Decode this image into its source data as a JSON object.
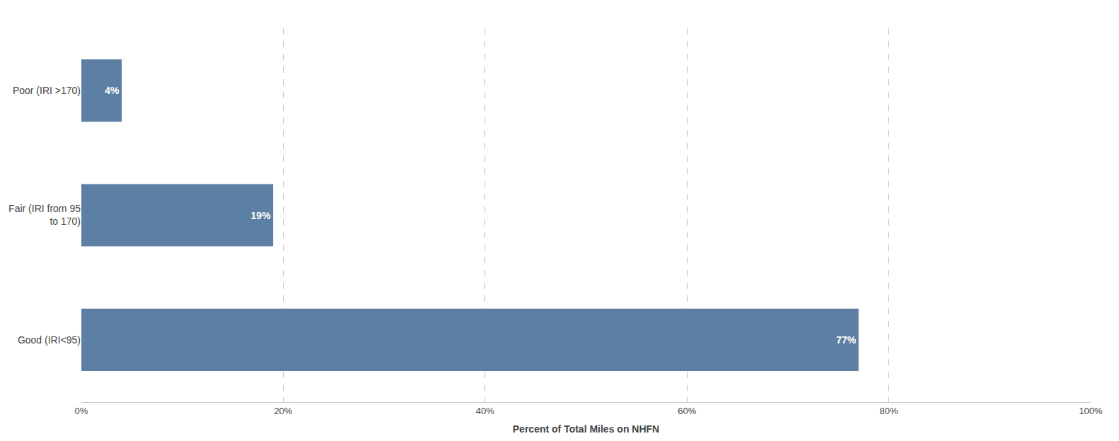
{
  "chart_data": {
    "type": "bar",
    "orientation": "horizontal",
    "categories": [
      "Good (IRI<95)",
      "Fair (IRI from 95\nto 170)",
      "Poor (IRI >170)"
    ],
    "values": [
      77,
      19,
      4
    ],
    "value_labels": [
      "77%",
      "19%",
      "4%"
    ],
    "data_labels": true,
    "color": "#5d7fa3",
    "xlabel": "Percent of Total Miles on NHFN",
    "xlim": [
      0,
      100
    ],
    "xticks": [
      {
        "value": 0,
        "label": "0%"
      },
      {
        "value": 20,
        "label": "20%"
      },
      {
        "value": 40,
        "label": "40%"
      },
      {
        "value": 60,
        "label": "60%"
      },
      {
        "value": 80,
        "label": "80%"
      },
      {
        "value": 100,
        "label": "100%"
      }
    ],
    "grid": true
  }
}
